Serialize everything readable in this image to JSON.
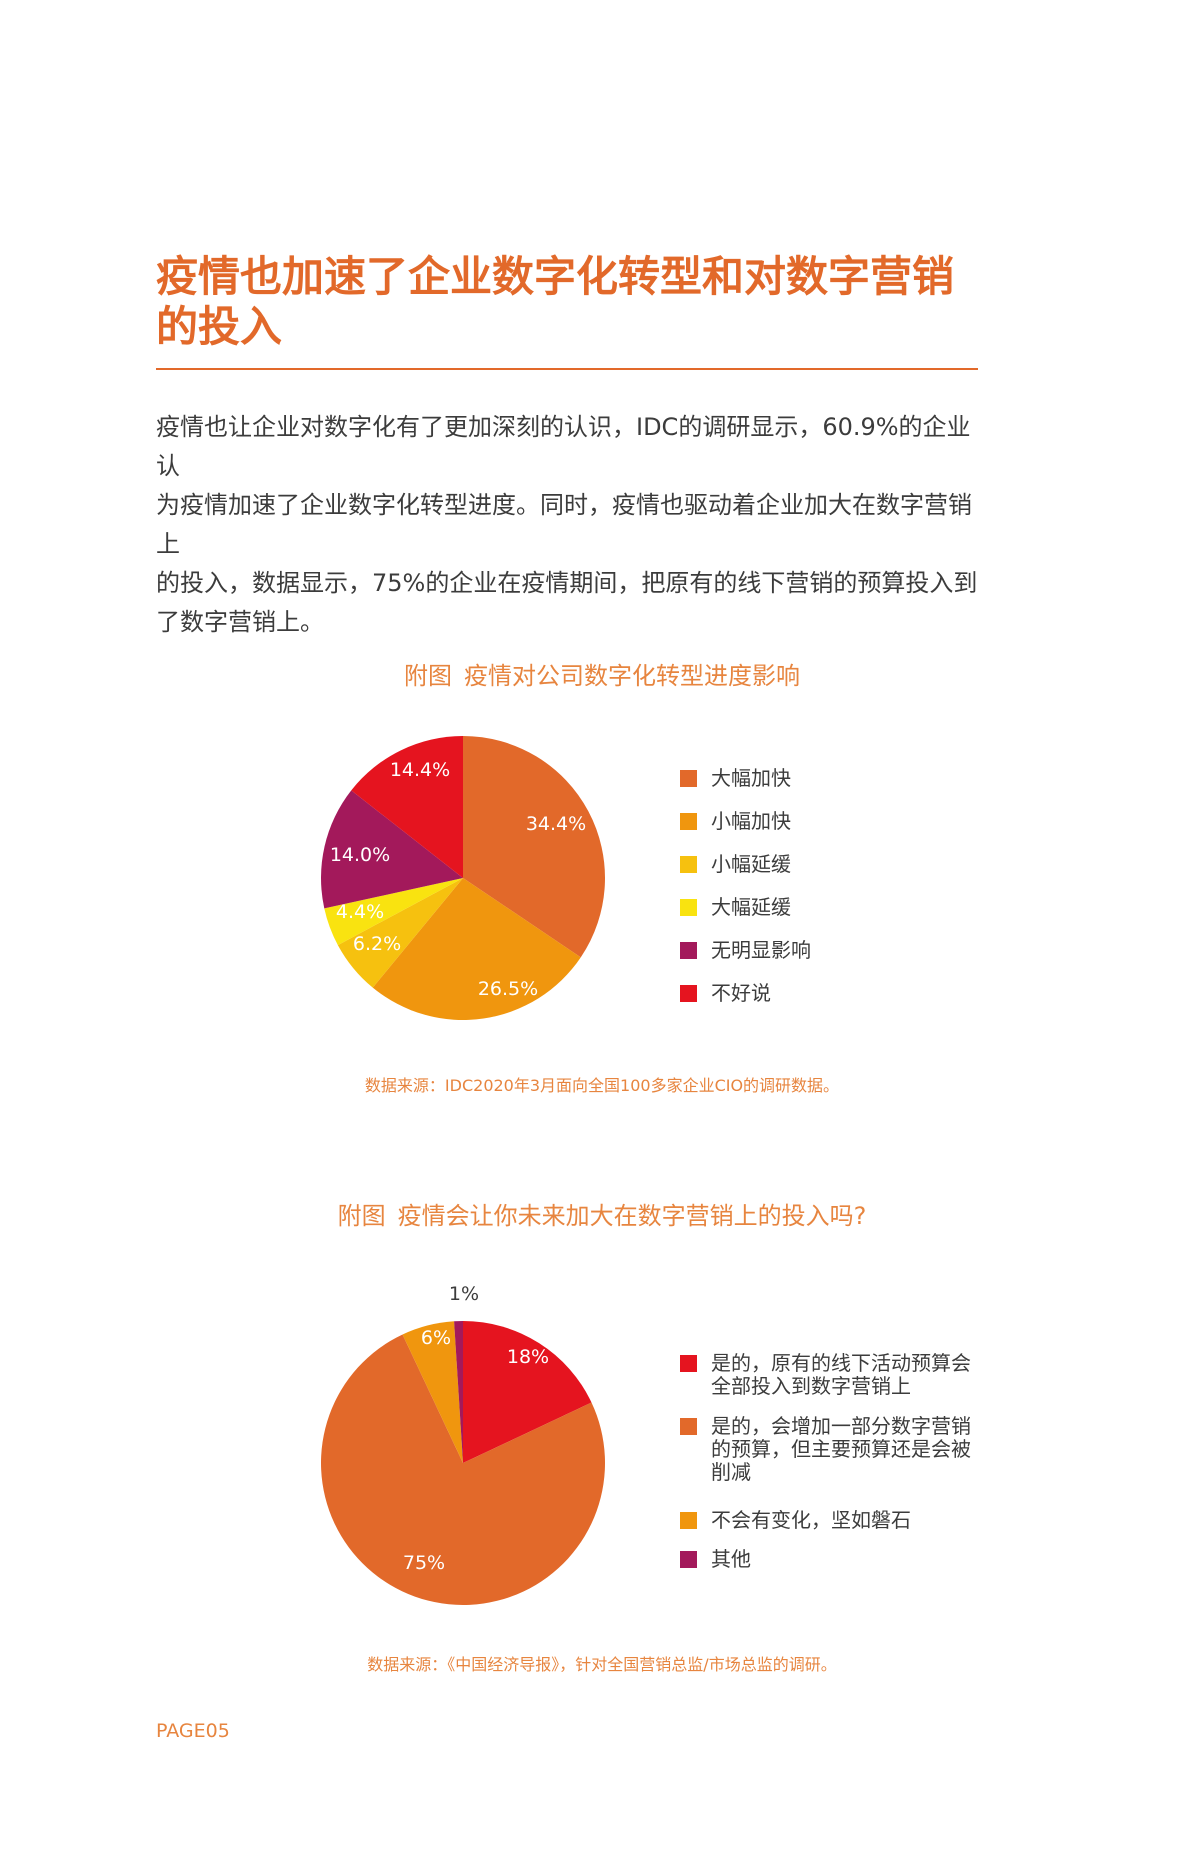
{
  "heading": {
    "line1": "疫情也加速了企业数字化转型和对数字营销",
    "line2": "的投入"
  },
  "intro": {
    "line1": "疫情也让企业对数字化有了更加深刻的认识，IDC的调研显示，60.9%的企业认",
    "line2": "为疫情加速了企业数字化转型进度。同时，疫情也驱动着企业加大在数字营销上",
    "line3": "的投入，数据显示，75%的企业在疫情期间，把原有的线下营销的预算投入到",
    "line4": "了数字营销上。"
  },
  "charts": {
    "first": {
      "prefix": "附图",
      "title": "疫情对公司数字化转型进度影响",
      "source": "数据来源：IDC2020年3月面向全国100多家企业CIO的调研数据。"
    },
    "second": {
      "prefix": "附图",
      "title": "疫情会让你未来加大在数字营销上的投入吗?",
      "source": "数据来源：《中国经济导报》，针对全国营销总监/市场总监的调研。"
    }
  },
  "page_number": "PAGE05",
  "chart_data": [
    {
      "type": "pie",
      "title": "疫情对公司数字化转型进度影响",
      "legend_position": "right",
      "slices": [
        {
          "label": "大幅加快",
          "value": 34.4,
          "display": "34.4%",
          "color": "#e2692a"
        },
        {
          "label": "小幅加快",
          "value": 26.5,
          "display": "26.5%",
          "color": "#f0960e"
        },
        {
          "label": "小幅延缓",
          "value": 6.2,
          "display": "6.2%",
          "color": "#f6c10f"
        },
        {
          "label": "大幅延缓",
          "value": 4.4,
          "display": "4.4%",
          "color": "#f9e310"
        },
        {
          "label": "无明显影响",
          "value": 14.0,
          "display": "14.0%",
          "color": "#a3195b"
        },
        {
          "label": "不好说",
          "value": 14.4,
          "display": "14.4%",
          "color": "#e5141f"
        }
      ]
    },
    {
      "type": "pie",
      "title": "疫情会让你未来加大在数字营销上的投入吗?",
      "legend_position": "right",
      "slices": [
        {
          "label": "是的，原有的线下活动预算会全部投入到数字营销上",
          "value": 18,
          "display": "18%",
          "color": "#e5141f"
        },
        {
          "label": "是的，会增加一部分数字营销的预算，但主要预算还是会被削减",
          "value": 75,
          "display": "75%",
          "color": "#e2692a"
        },
        {
          "label": "不会有变化，坚如磐石",
          "value": 6,
          "display": "6%",
          "color": "#f0960e"
        },
        {
          "label": "其他",
          "value": 1,
          "display": "1%",
          "color": "#a3195b"
        }
      ]
    }
  ]
}
